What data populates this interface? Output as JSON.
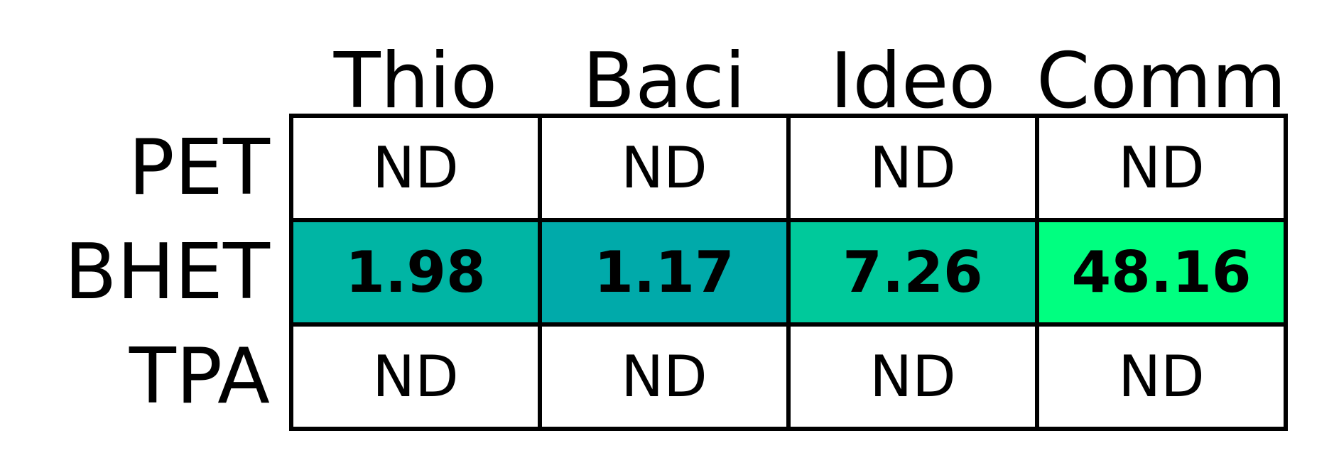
{
  "chart_data": {
    "type": "heatmap",
    "columns": [
      "Thio",
      "Baci",
      "Ideo",
      "Comm"
    ],
    "rows": [
      "PET",
      "BHET",
      "TPA"
    ],
    "cells": [
      [
        "ND",
        "ND",
        "ND",
        "ND"
      ],
      [
        "1.98",
        "1.17",
        "7.26",
        "48.16"
      ],
      [
        "ND",
        "ND",
        "ND",
        "ND"
      ]
    ],
    "values": [
      [
        null,
        null,
        null,
        null
      ],
      [
        1.98,
        1.17,
        7.26,
        48.16
      ],
      [
        null,
        null,
        null,
        null
      ]
    ],
    "colors": {
      "low": "#00aaaa",
      "high": "#00ff80",
      "missing": "#ffffff",
      "grid": "#000000"
    }
  }
}
